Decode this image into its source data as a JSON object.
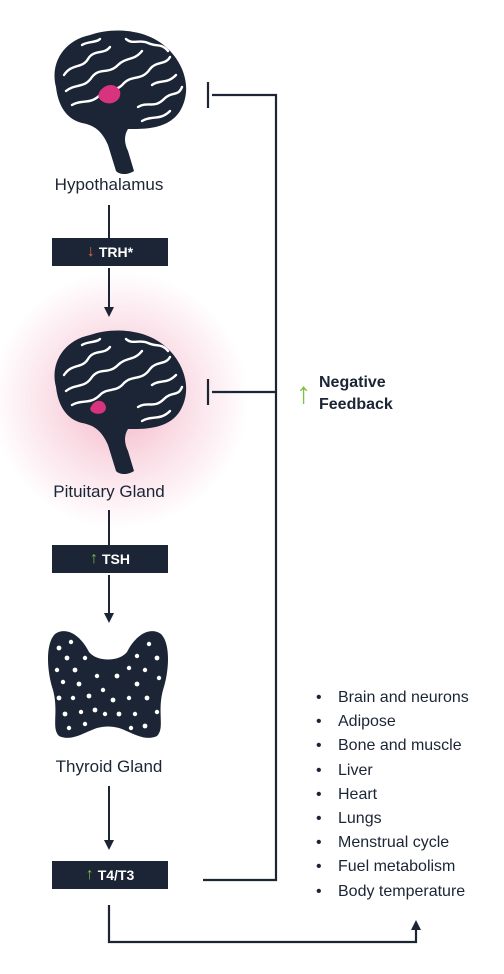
{
  "nodes": {
    "hypothalamus": "Hypothalamus",
    "pituitary": "Pituitary Gland",
    "thyroid": "Thyroid Gland"
  },
  "hormones": {
    "trh": {
      "label": "TRH*",
      "direction": "down",
      "color": "#e3644b"
    },
    "tsh": {
      "label": "TSH",
      "direction": "up",
      "color": "#7ac142"
    },
    "t4t3": {
      "label": "T4/T3",
      "direction": "up",
      "color": "#7ac142"
    }
  },
  "feedback": {
    "line1": "Negative",
    "line2": "Feedback",
    "direction": "up",
    "color": "#7ac142"
  },
  "targets": [
    "Brain and neurons",
    "Adipose",
    "Bone and muscle",
    "Liver",
    "Heart",
    "Lungs",
    "Menstrual cycle",
    "Fuel metabolism",
    "Body temperature"
  ],
  "colors": {
    "navy": "#1b2535",
    "highlight": "#d8347e",
    "glow": "#f2a3bd"
  },
  "icons": [
    "brain-icon",
    "brain-icon",
    "thyroid-gland-icon",
    "up-arrow-icon",
    "down-arrow-icon"
  ]
}
